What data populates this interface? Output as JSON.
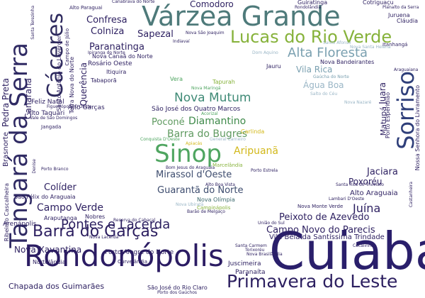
{
  "words": [
    {
      "text": "Várzea Grande",
      "color": "#4e7a7a"
    },
    {
      "text": "Cuiabá",
      "color": "#2a1f6b"
    },
    {
      "text": "Rondonópolis",
      "color": "#2b1c63"
    },
    {
      "text": "Sinop",
      "color": "#4fa560"
    },
    {
      "text": "Sorriso",
      "color": "#2f3f7a"
    },
    {
      "text": "Tangará da Serra",
      "color": "#2f2a63"
    },
    {
      "text": "Lucas do Rio Verde",
      "color": "#86b23a"
    },
    {
      "text": "Cáceres",
      "color": "#2e2a5e"
    },
    {
      "text": "Barra do Garças",
      "color": "#2c1f60"
    },
    {
      "text": "Primavera do Leste",
      "color": "#2c1f60"
    },
    {
      "text": "Alta Floresta",
      "color": "#7aa0b0"
    },
    {
      "text": "Pontes e Lacerda",
      "color": "#2c2060"
    },
    {
      "text": "Nova Mutum",
      "color": "#3f8a76"
    },
    {
      "text": "Juína",
      "color": "#2c1f60"
    },
    {
      "text": "Campo Verde",
      "color": "#2c1f60"
    },
    {
      "text": "Peixoto de Azevedo",
      "color": "#2c1f60"
    },
    {
      "text": "Campo Novo do Parecis",
      "color": "#2c1f60"
    },
    {
      "text": "Colíder",
      "color": "#2c1f60"
    },
    {
      "text": "Guarantã do Norte",
      "color": "#3d4c6e"
    },
    {
      "text": "Mirassol d'Oeste",
      "color": "#3d4c6e"
    },
    {
      "text": "Barra do Bugres",
      "color": "#5f9a60"
    },
    {
      "text": "Poconé",
      "color": "#5f9a60"
    },
    {
      "text": "Diamantino",
      "color": "#3f8a4a"
    },
    {
      "text": "Aripuanã",
      "color": "#d2b81a"
    },
    {
      "text": "Jaciara",
      "color": "#2c1f60"
    },
    {
      "text": "Poxoréu",
      "color": "#2c1f60"
    },
    {
      "text": "Alto Araguaia",
      "color": "#2c1f60"
    },
    {
      "text": "Nova Xavantina",
      "color": "#2c1f60"
    },
    {
      "text": "Chapada dos Guimarães",
      "color": "#2c1f60"
    },
    {
      "text": "Juscimeira",
      "color": "#2c1f60"
    },
    {
      "text": "Paranaíta",
      "color": "#2c1f60"
    },
    {
      "text": "Canarana",
      "color": "#2c1f60"
    },
    {
      "text": "Pedra Preta",
      "color": "#2c1f60"
    },
    {
      "text": "Colniza",
      "color": "#2c1f60"
    },
    {
      "text": "Sapezal",
      "color": "#2c1f60"
    },
    {
      "text": "Confresa",
      "color": "#2c1f60"
    },
    {
      "text": "Paranatinga",
      "color": "#2c1f60"
    },
    {
      "text": "Comodoro",
      "color": "#2c1f60"
    },
    {
      "text": "Querência",
      "color": "#2c1f60"
    },
    {
      "text": "Matupá",
      "color": "#2c1f60"
    },
    {
      "text": "Juara",
      "color": "#2c1f60"
    },
    {
      "text": "Vila Rica",
      "color": "#7aa0b0"
    },
    {
      "text": "Água Boa",
      "color": "#9ab6c6"
    },
    {
      "text": "Vila Bela da Santíssima Trindade",
      "color": "#2c1f60"
    },
    {
      "text": "Brasnorte",
      "color": "#2c1f60"
    },
    {
      "text": "São José dos Quatro Marcos",
      "color": "#2c1f60"
    },
    {
      "text": "Nova Olímpia",
      "color": "#3d6a6e"
    },
    {
      "text": "Rosário Oeste",
      "color": "#2c1f60"
    },
    {
      "text": "Itiquira",
      "color": "#2c1f60"
    },
    {
      "text": "Tabaporã",
      "color": "#2c1f60"
    },
    {
      "text": "Feliz Natal",
      "color": "#2c1f60"
    },
    {
      "text": "Alto Taquari",
      "color": "#2c1f60"
    },
    {
      "text": "Alto Garças",
      "color": "#2c1f60"
    },
    {
      "text": "Nova Bandeirantes",
      "color": "#2c1f60"
    },
    {
      "text": "Guiratinga",
      "color": "#2c1f60"
    },
    {
      "text": "Cotriguaçu",
      "color": "#2c1f60"
    },
    {
      "text": "Juruena",
      "color": "#2c1f60"
    },
    {
      "text": "Cláudia",
      "color": "#2c1f60"
    },
    {
      "text": "Itanhangá",
      "color": "#2c1f60"
    },
    {
      "text": "Nova Canaã do Norte",
      "color": "#2c1f60"
    },
    {
      "text": "Santo Antônio do Leverger",
      "color": "#2c1f60"
    },
    {
      "text": "Campo de Júlio",
      "color": "#2c1f60"
    },
    {
      "text": "Terra Nova do Norte",
      "color": "#2c1f60"
    },
    {
      "text": "São Félix do Araguaia",
      "color": "#2c1f60"
    },
    {
      "text": "Arenápolis",
      "color": "#2c1f60"
    },
    {
      "text": "Araputanga",
      "color": "#2c1f60"
    },
    {
      "text": "Nobres",
      "color": "#2c1f60"
    },
    {
      "text": "Porto Alegre do Norte",
      "color": "#2c1f60"
    },
    {
      "text": "Nova Monte Verde",
      "color": "#2c1f60"
    },
    {
      "text": "Nortelândia",
      "color": "#2c1f60"
    },
    {
      "text": "Curvelândia",
      "color": "#2c1f60"
    },
    {
      "text": "São José do Rio Claro",
      "color": "#2c1f60"
    },
    {
      "text": "Porto dos Gaúchos",
      "color": "#2c1f60"
    },
    {
      "text": "Nova Brasilândia",
      "color": "#2c1f60"
    },
    {
      "text": "Ribeirão Cascalheira",
      "color": "#2c1f60"
    },
    {
      "text": "Porto Esperidião",
      "color": "#2c1f60"
    },
    {
      "text": "Nossa Senhora do Livramento",
      "color": "#2c1f60"
    },
    {
      "text": "Alto Boa Vista",
      "color": "#2c1f60"
    },
    {
      "text": "Jauru",
      "color": "#2c1f60"
    },
    {
      "text": "Vera",
      "color": "#4fa560"
    },
    {
      "text": "Tapurah",
      "color": "#86b23a"
    },
    {
      "text": "Carlinda",
      "color": "#d2b81a"
    },
    {
      "text": "Marcelândia",
      "color": "#86b23a"
    },
    {
      "text": "Campinápolis",
      "color": "#86b23a"
    },
    {
      "text": "Nova Ubiratã",
      "color": "#9ab6c6"
    },
    {
      "text": "Gaúcha do Norte",
      "color": "#7aa0b0"
    },
    {
      "text": "Dom Aquino",
      "color": "#9ab6c6"
    },
    {
      "text": "Alto Paraguai",
      "color": "#2c1f60"
    },
    {
      "text": "Canabrava do Norte",
      "color": "#2c1f60"
    },
    {
      "text": "Santa Terezinha",
      "color": "#2c1f60"
    },
    {
      "text": "Planalto da Serra",
      "color": "#2c1f60"
    },
    {
      "text": "Rondolândia",
      "color": "#2c1f60"
    },
    {
      "text": "Nova Maringá",
      "color": "#4fa560"
    },
    {
      "text": "Apiacás",
      "color": "#d2b81a"
    },
    {
      "text": "Conquista D'Oeste",
      "color": "#4fa560"
    },
    {
      "text": "General Carneiro",
      "color": "#9ab6c6"
    },
    {
      "text": "Indiavaí",
      "color": "#2c1f60"
    },
    {
      "text": "Nova Nazaré",
      "color": "#9ab6c6"
    },
    {
      "text": "Salto do Céu",
      "color": "#9ab6c6"
    },
    {
      "text": "Acorizal",
      "color": "#4fa560"
    },
    {
      "text": "Jangada",
      "color": "#2c1f60"
    },
    {
      "text": "Vale de São Domingos",
      "color": "#2c1f60"
    },
    {
      "text": "Figueirópolis D'Oeste",
      "color": "#2c1f60"
    },
    {
      "text": "Denise",
      "color": "#2c1f60"
    },
    {
      "text": "Porto Estrela",
      "color": "#2c1f60"
    },
    {
      "text": "Bom Jesus do Araguaia",
      "color": "#2c1f60"
    },
    {
      "text": "Lambari D'Oeste",
      "color": "#2c1f60"
    },
    {
      "text": "Santa Rita do Trivelato",
      "color": "#2c1f60"
    },
    {
      "text": "Torixoréu",
      "color": "#2c1f60"
    },
    {
      "text": "Santa Carmem",
      "color": "#2c1f60"
    },
    {
      "text": "Nova Lacerda",
      "color": "#2c1f60"
    },
    {
      "text": "Barão de Melgaço",
      "color": "#2c1f60"
    },
    {
      "text": "Porto Branco",
      "color": "#2c1f60"
    },
    {
      "text": "Reserva do Cabaçal",
      "color": "#2c1f60"
    },
    {
      "text": "União do Sul",
      "color": "#2c1f60"
    },
    {
      "text": "Cocalinho",
      "color": "#2c1f60"
    },
    {
      "text": "Ipiranga do Norte",
      "color": "#2c1f60"
    },
    {
      "text": "Nova São Joaquim",
      "color": "#2c1f60"
    },
    {
      "text": "Araguaiana",
      "color": "#2c1f60"
    },
    {
      "text": "Castanheira",
      "color": "#2c1f60"
    },
    {
      "text": "Santo Afonso",
      "color": "#9ab6c6"
    },
    {
      "text": "Nova Santa Helena",
      "color": "#9ab6c6"
    }
  ]
}
